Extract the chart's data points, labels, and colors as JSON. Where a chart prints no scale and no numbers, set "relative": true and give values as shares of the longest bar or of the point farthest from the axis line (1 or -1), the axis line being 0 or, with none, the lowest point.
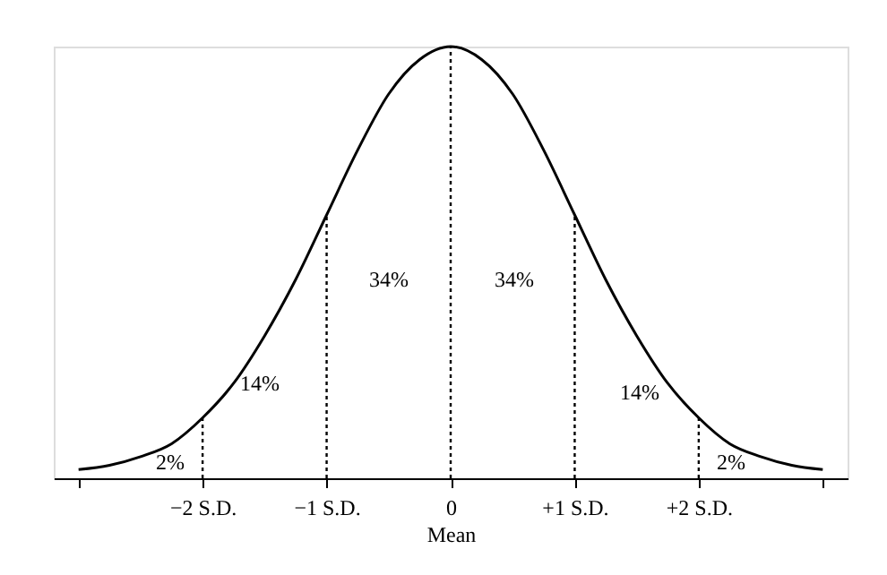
{
  "chart_data": {
    "type": "line",
    "relative": true,
    "xlabel": "Mean",
    "x": [
      -3,
      -2.75,
      -2.5,
      -2.25,
      -2,
      -1.75,
      -1.5,
      -1.25,
      -1,
      -0.75,
      -0.5,
      -0.25,
      0,
      0.25,
      0.5,
      0.75,
      1,
      1.25,
      1.5,
      1.75,
      2,
      2.25,
      2.5,
      2.75,
      3
    ],
    "series": [
      {
        "color": "#000000",
        "values": [
          0.02,
          0.03,
          0.05,
          0.08,
          0.14,
          0.22,
          0.33,
          0.46,
          0.61,
          0.76,
          0.89,
          0.97,
          1,
          0.97,
          0.89,
          0.76,
          0.61,
          0.46,
          0.33,
          0.22,
          0.14,
          0.08,
          0.05,
          0.03,
          0.02
        ]
      }
    ],
    "xlim": [
      -3.2,
      3.2
    ],
    "xticks": [
      {
        "value": -3,
        "label": null
      },
      {
        "value": -2,
        "label": "−2 S.D."
      },
      {
        "value": -1,
        "label": "−1 S.D."
      },
      0,
      {
        "value": 1,
        "label": "+1 S.D."
      },
      {
        "value": 2,
        "label": "+2 S.D."
      },
      {
        "value": 3,
        "label": null
      }
    ],
    "ref_lines": [
      {
        "axis": "x",
        "value": -2,
        "line_style": "dotted",
        "color": "#000000"
      },
      {
        "axis": "x",
        "value": -1,
        "line_style": "dotted",
        "color": "#000000"
      },
      {
        "axis": "x",
        "value": 0,
        "line_style": "dotted",
        "color": "#000000"
      },
      {
        "axis": "x",
        "value": 1,
        "line_style": "dotted",
        "color": "#000000"
      },
      {
        "axis": "x",
        "value": 2,
        "line_style": "dotted",
        "color": "#000000"
      }
    ],
    "annotations": [
      "2%",
      "14%",
      "34%",
      "34%",
      "14%",
      "2%"
    ],
    "grid": false
  }
}
